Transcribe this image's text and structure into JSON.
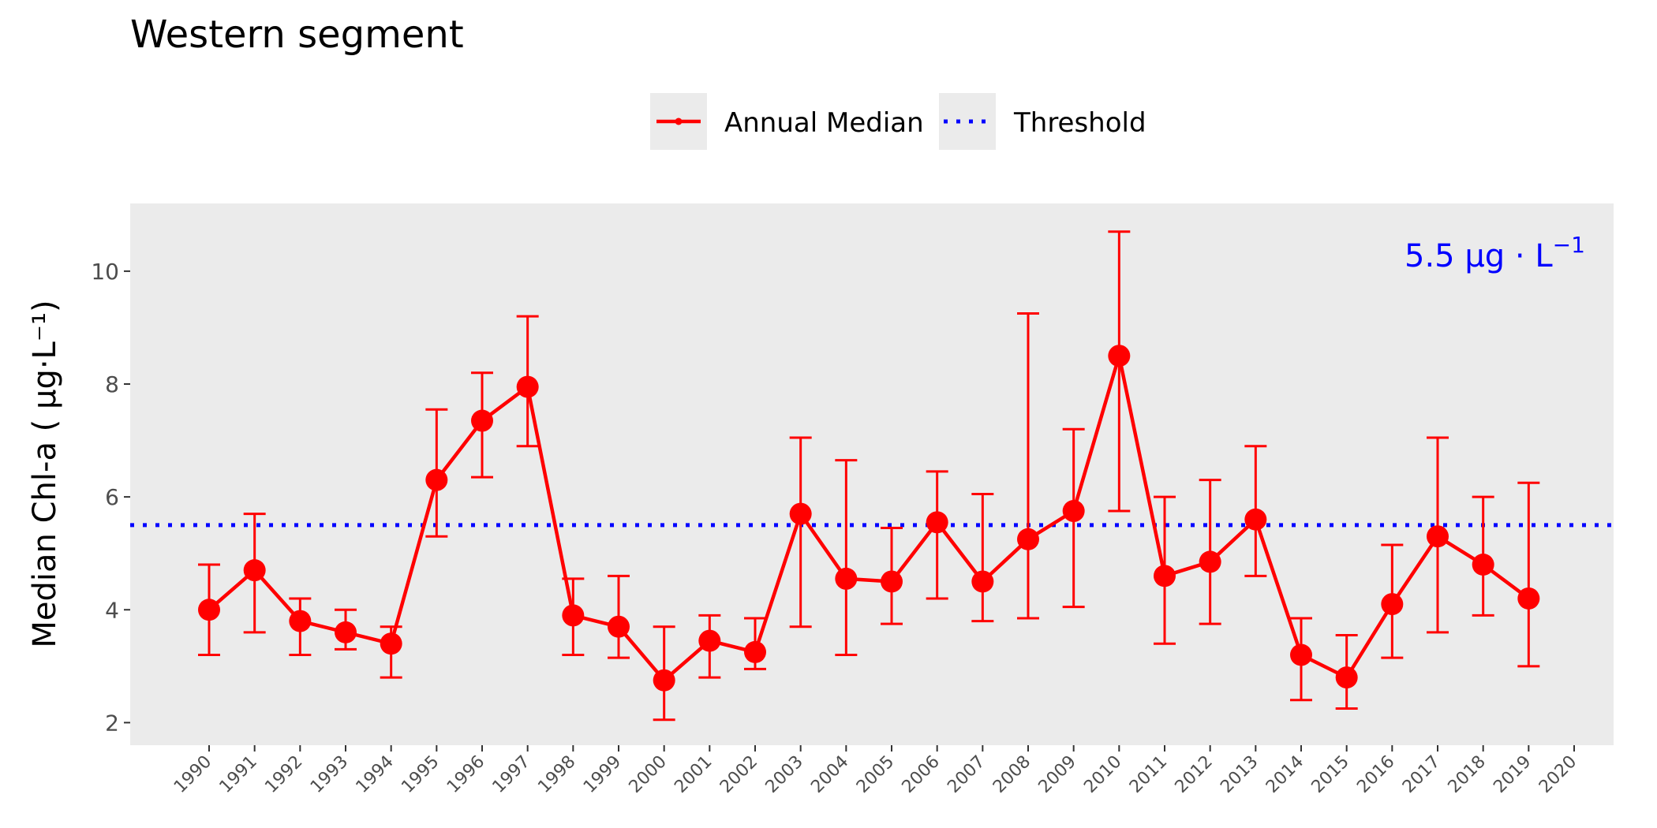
{
  "chart_data": {
    "type": "line",
    "title": "Western segment",
    "ylabel": "Median Chl-a ( µg·L⁻¹)",
    "xlabel": "",
    "ylim": [
      1.6,
      11.2
    ],
    "yticks": [
      2,
      4,
      6,
      8,
      10
    ],
    "xticks": [
      1990,
      1991,
      1992,
      1993,
      1994,
      1995,
      1996,
      1997,
      1998,
      1999,
      2000,
      2001,
      2002,
      2003,
      2004,
      2005,
      2006,
      2007,
      2008,
      2009,
      2010,
      2011,
      2012,
      2013,
      2014,
      2015,
      2016,
      2017,
      2018,
      2019,
      2020
    ],
    "grid": false,
    "legend_position": "top",
    "legend": [
      {
        "label": "Annual Median",
        "color": "#ff0000",
        "style": "line-point"
      },
      {
        "label": "Threshold",
        "color": "#0000ff",
        "style": "dotted"
      }
    ],
    "series": [
      {
        "name": "Annual Median",
        "color": "#ff0000",
        "x": [
          1990,
          1991,
          1992,
          1993,
          1994,
          1995,
          1996,
          1997,
          1998,
          1999,
          2000,
          2001,
          2002,
          2003,
          2004,
          2005,
          2006,
          2007,
          2008,
          2009,
          2010,
          2011,
          2012,
          2013,
          2014,
          2015,
          2016,
          2017,
          2018,
          2019
        ],
        "values": [
          4.0,
          4.7,
          3.8,
          3.6,
          3.4,
          6.3,
          7.35,
          7.95,
          3.9,
          3.7,
          2.75,
          3.45,
          3.25,
          5.7,
          4.55,
          4.5,
          5.55,
          4.5,
          5.25,
          5.75,
          8.5,
          4.6,
          4.85,
          5.6,
          3.2,
          2.8,
          4.1,
          5.3,
          4.8,
          4.2
        ],
        "lower": [
          3.2,
          3.6,
          3.2,
          3.3,
          2.8,
          5.3,
          6.35,
          6.9,
          3.2,
          3.15,
          2.05,
          2.8,
          2.95,
          3.7,
          3.2,
          3.75,
          4.2,
          3.8,
          3.85,
          4.05,
          5.75,
          3.4,
          3.75,
          4.6,
          2.4,
          2.25,
          3.15,
          3.6,
          3.9,
          3.0
        ],
        "upper": [
          4.8,
          5.7,
          4.2,
          4.0,
          3.7,
          7.55,
          8.2,
          9.2,
          4.55,
          4.6,
          3.7,
          3.9,
          3.85,
          7.05,
          6.65,
          5.45,
          6.45,
          6.05,
          9.25,
          7.2,
          10.7,
          6.0,
          6.3,
          6.9,
          3.85,
          3.55,
          5.15,
          7.05,
          6.0,
          6.25
        ]
      },
      {
        "name": "Threshold",
        "color": "#0000ff",
        "value": 5.5
      }
    ],
    "annotations": {
      "threshold_number": "5.5",
      "threshold_unit": "μg · L",
      "threshold_exponent": "−1"
    }
  }
}
